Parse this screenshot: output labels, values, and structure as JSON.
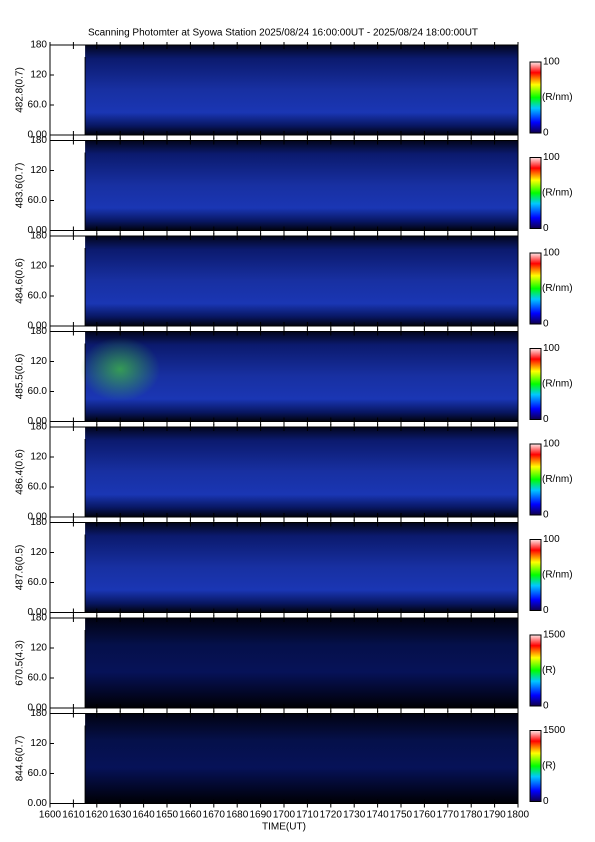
{
  "chart_data": {
    "type": "heatmap-stack",
    "title": "Scanning Photomter at Syowa Station 2025/08/24 16:00:00UT - 2025/08/24 18:00:00UT",
    "xlabel": "TIME(UT)",
    "xlim": [
      1600,
      1800
    ],
    "xticks": [
      1600,
      1610,
      1620,
      1630,
      1640,
      1650,
      1660,
      1670,
      1680,
      1690,
      1700,
      1710,
      1720,
      1730,
      1740,
      1750,
      1760,
      1770,
      1780,
      1790,
      1800
    ],
    "x": [
      1615,
      1800
    ],
    "panels": [
      {
        "ylabel": "482.8(0.7)",
        "ylim": [
          0,
          180
        ],
        "yticks": [
          {
            "value": 0,
            "label": "0.00"
          },
          {
            "value": 60,
            "label": "60.0"
          },
          120,
          180
        ],
        "clim": [
          0,
          100
        ],
        "cticks": [
          0,
          100
        ],
        "clabel": "(R/nm)"
      },
      {
        "ylabel": "483.6(0.7)",
        "ylim": [
          0,
          180
        ],
        "yticks": [
          {
            "value": 0,
            "label": "0.00"
          },
          {
            "value": 60,
            "label": "60.0"
          },
          120,
          180
        ],
        "clim": [
          0,
          100
        ],
        "cticks": [
          0,
          100
        ],
        "clabel": "(R/nm)"
      },
      {
        "ylabel": "484.6(0.6)",
        "ylim": [
          0,
          180
        ],
        "yticks": [
          {
            "value": 0,
            "label": "0.00"
          },
          {
            "value": 60,
            "label": "60.0"
          },
          120,
          180
        ],
        "clim": [
          0,
          100
        ],
        "cticks": [
          0,
          100
        ],
        "clabel": "(R/nm)"
      },
      {
        "ylabel": "485.5(0.6)",
        "ylim": [
          0,
          180
        ],
        "yticks": [
          {
            "value": 0,
            "label": "0.00"
          },
          {
            "value": 60,
            "label": "60.0"
          },
          120,
          180
        ],
        "clim": [
          0,
          100
        ],
        "cticks": [
          0,
          100
        ],
        "clabel": "(R/nm)"
      },
      {
        "ylabel": "486.4(0.6)",
        "ylim": [
          0,
          180
        ],
        "yticks": [
          {
            "value": 0,
            "label": "0.00"
          },
          {
            "value": 60,
            "label": "60.0"
          },
          120,
          180
        ],
        "clim": [
          0,
          100
        ],
        "cticks": [
          0,
          100
        ],
        "clabel": "(R/nm)"
      },
      {
        "ylabel": "487.6(0.5)",
        "ylim": [
          0,
          180
        ],
        "yticks": [
          {
            "value": 0,
            "label": "0.00"
          },
          {
            "value": 60,
            "label": "60.0"
          },
          120,
          180
        ],
        "clim": [
          0,
          100
        ],
        "cticks": [
          0,
          100
        ],
        "clabel": "(R/nm)"
      },
      {
        "ylabel": "670.5(4.3)",
        "ylim": [
          0,
          180
        ],
        "yticks": [
          {
            "value": 0,
            "label": "0.00"
          },
          {
            "value": 60,
            "label": "60.0"
          },
          120,
          180
        ],
        "clim": [
          0,
          1500
        ],
        "cticks": [
          0,
          1500
        ],
        "clabel": "(R)"
      },
      {
        "ylabel": "844.6(0.7)",
        "ylim": [
          0,
          180
        ],
        "yticks": [
          {
            "value": 0,
            "label": "0.00"
          },
          {
            "value": 60,
            "label": "60.0"
          },
          120,
          180
        ],
        "clim": [
          0,
          1500
        ],
        "cticks": [
          0,
          1500
        ],
        "clabel": "(R)"
      }
    ]
  }
}
